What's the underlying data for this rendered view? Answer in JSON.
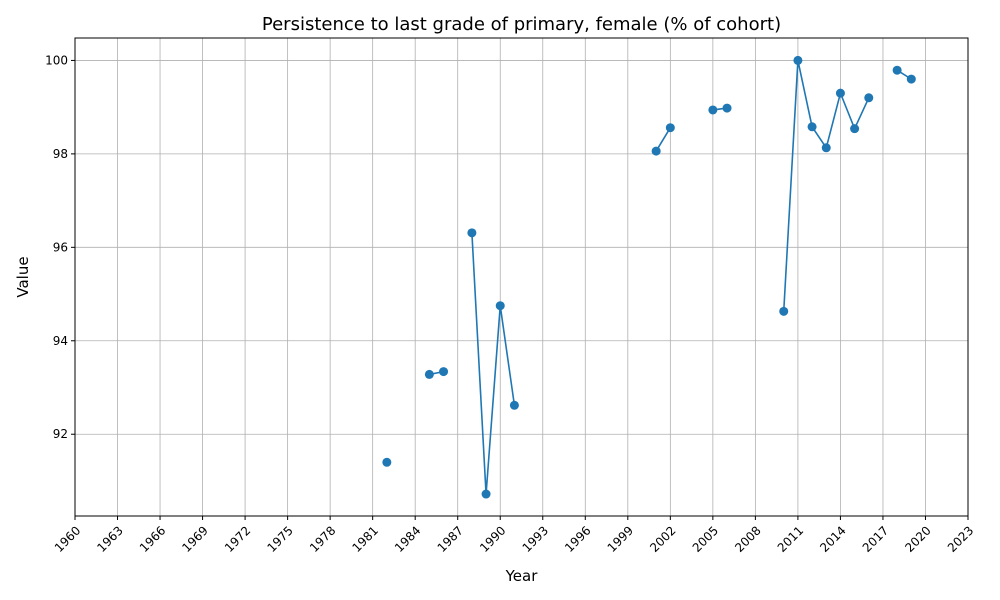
{
  "chart_data": {
    "type": "line",
    "title": "Persistence to last grade of primary, female (% of cohort)",
    "xlabel": "Year",
    "ylabel": "Value",
    "xlim": [
      1960,
      2023
    ],
    "ylim": [
      90.25,
      100.48
    ],
    "grid": true,
    "x_ticks": [
      1960,
      1963,
      1966,
      1969,
      1972,
      1975,
      1978,
      1981,
      1984,
      1987,
      1990,
      1993,
      1996,
      1999,
      2002,
      2005,
      2008,
      2011,
      2014,
      2017,
      2020,
      2023
    ],
    "y_ticks": [
      92,
      94,
      96,
      98,
      100
    ],
    "color": "#1f77b4",
    "series": [
      {
        "x": [
          1982,
          1983,
          1984,
          1985,
          1986,
          1987,
          1988,
          1989,
          1990,
          1991,
          1992,
          1993,
          1994,
          1995,
          1996,
          1997,
          1998,
          1999,
          2000,
          2001,
          2002,
          2003,
          2004,
          2005,
          2006,
          2007,
          2008,
          2009,
          2010,
          2011,
          2012,
          2013,
          2014,
          2015,
          2016,
          2017,
          2018,
          2019
        ],
        "values": [
          91.4,
          null,
          null,
          93.28,
          93.34,
          null,
          96.31,
          90.72,
          94.75,
          92.62,
          null,
          null,
          null,
          null,
          null,
          null,
          null,
          null,
          null,
          98.06,
          98.56,
          null,
          null,
          98.94,
          98.98,
          null,
          null,
          null,
          94.63,
          100.0,
          98.58,
          98.13,
          99.3,
          98.54,
          99.2,
          null,
          99.79,
          99.6
        ]
      }
    ]
  }
}
